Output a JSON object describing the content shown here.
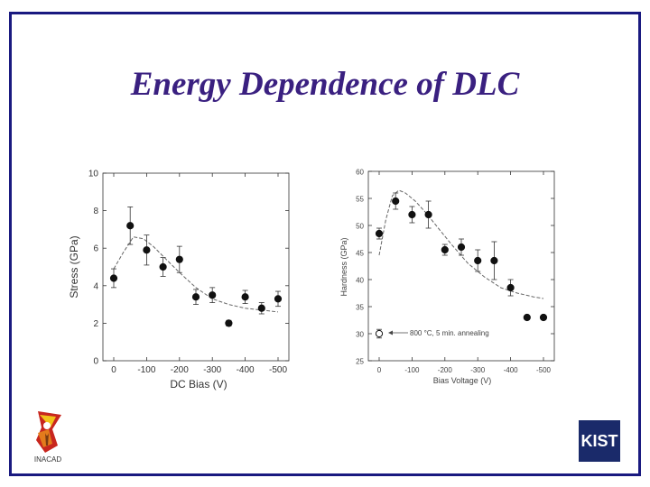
{
  "slide": {
    "title": "Energy Dependence of DLC",
    "left_logo_text": "INACAD",
    "right_logo_text": "KIST",
    "colors": {
      "frame": "#1a1a80",
      "title": "#3a2080",
      "logo": "#1a2a6a"
    }
  },
  "chart_data": [
    {
      "type": "scatter",
      "title": "",
      "xlabel": "DC Bias (V)",
      "ylabel": "Stress (GPa)",
      "xlim": [
        0,
        -500
      ],
      "ylim": [
        0,
        10
      ],
      "x_ticks": [
        "0",
        "-100",
        "-200",
        "-300",
        "-400",
        "-500"
      ],
      "x_tick_values": [
        0,
        -100,
        -200,
        -300,
        -400,
        -500
      ],
      "y_ticks": [
        "0",
        "2",
        "4",
        "6",
        "8",
        "10"
      ],
      "y_tick_values": [
        0,
        2,
        4,
        6,
        8,
        10
      ],
      "grid": false,
      "series": [
        {
          "marker": "filled-circle",
          "x": [
            0,
            -50,
            -100,
            -150,
            -200,
            -250,
            -300,
            -350,
            -400,
            -450,
            -500
          ],
          "y": [
            4.4,
            7.2,
            5.9,
            5.0,
            5.4,
            3.4,
            3.5,
            2.0,
            3.4,
            2.8,
            3.3
          ],
          "err": [
            0.5,
            1.0,
            0.8,
            0.5,
            0.7,
            0.4,
            0.4,
            0.15,
            0.35,
            0.3,
            0.4
          ]
        },
        {
          "style": "dashed-line",
          "x": [
            0,
            -30,
            -60,
            -90,
            -120,
            -160,
            -200,
            -250,
            -300,
            -350,
            -400,
            -450,
            -500
          ],
          "y": [
            4.9,
            5.8,
            6.6,
            6.5,
            6.1,
            5.4,
            4.7,
            3.9,
            3.3,
            3.0,
            2.8,
            2.7,
            2.6
          ]
        }
      ]
    },
    {
      "type": "scatter",
      "title": "",
      "xlabel": "Bias Voltage (V)",
      "ylabel": "Hardness (GPa)",
      "xlim": [
        0,
        -500
      ],
      "ylim": [
        25,
        60
      ],
      "x_ticks": [
        "0",
        "-100",
        "-200",
        "-300",
        "-400",
        "-500"
      ],
      "x_tick_values": [
        0,
        -100,
        -200,
        -300,
        -400,
        -500
      ],
      "y_ticks": [
        "25",
        "30",
        "35",
        "40",
        "45",
        "50",
        "55",
        "60"
      ],
      "y_tick_values": [
        25,
        30,
        35,
        40,
        45,
        50,
        55,
        60
      ],
      "grid": false,
      "annotation": {
        "text": "800 °C, 5 min. annealing",
        "x": 0,
        "y": 30
      },
      "series": [
        {
          "marker": "filled-circle",
          "x": [
            0,
            -50,
            -100,
            -150,
            -200,
            -250,
            -300,
            -350,
            -400,
            -450,
            -500
          ],
          "y": [
            48.5,
            54.5,
            52,
            52,
            45.5,
            46,
            43.5,
            43.5,
            38.5,
            33,
            33
          ],
          "err": [
            1.0,
            1.5,
            1.5,
            2.5,
            1.0,
            1.5,
            2.0,
            3.5,
            1.5,
            0.3,
            0.3
          ]
        },
        {
          "marker": "open-circle",
          "x": [
            0
          ],
          "y": [
            30
          ],
          "err": [
            0.8
          ]
        },
        {
          "style": "dashed-line",
          "x": [
            0,
            -20,
            -40,
            -60,
            -80,
            -110,
            -140,
            -180,
            -220,
            -270,
            -320,
            -370,
            -420,
            -470,
            -500
          ],
          "y": [
            44.5,
            51,
            55.5,
            56.5,
            56,
            54.5,
            52.5,
            49.5,
            46.5,
            43,
            40.5,
            38.5,
            37.5,
            36.8,
            36.5
          ]
        }
      ]
    }
  ]
}
